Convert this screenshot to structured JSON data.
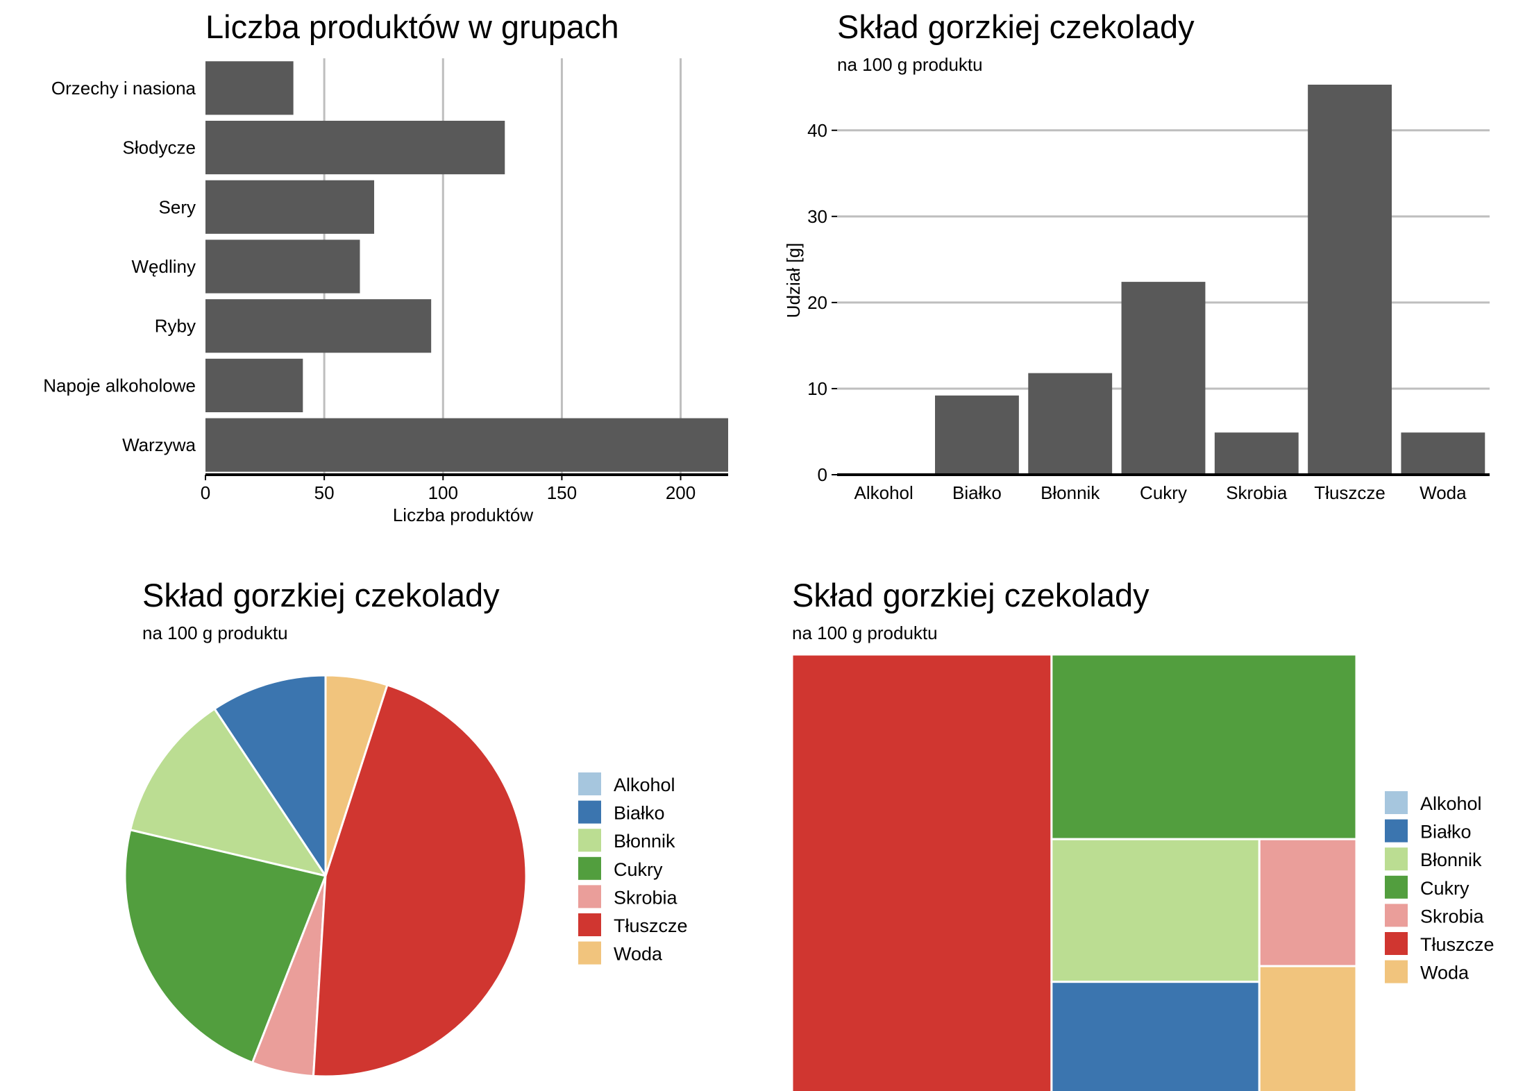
{
  "colors": {
    "bar": "#595959",
    "grid": "#BEBEBE",
    "axis": "#000000",
    "Alkohol": "#A6C6DE",
    "Białko": "#3B75AF",
    "Błonnik": "#BBDD92",
    "Cukry": "#529E3E",
    "Skrobia": "#EA9E9A",
    "Tłuszcze": "#D03630",
    "Woda": "#F1C47D"
  },
  "chart_data": [
    {
      "type": "bar",
      "orientation": "horizontal",
      "title": "Liczba produktów w grupach",
      "subtitle": "",
      "xlabel": "Liczba produktów",
      "ylabel": "",
      "categories": [
        "Orzechy i nasiona",
        "Słodycze",
        "Sery",
        "Wędliny",
        "Ryby",
        "Napoje alkoholowe",
        "Warzywa"
      ],
      "values": [
        37,
        126,
        71,
        65,
        95,
        41,
        220
      ],
      "xlim": [
        0,
        220
      ],
      "xticks": [
        "0",
        "50",
        "100",
        "150",
        "200"
      ],
      "xtick_values": [
        0,
        50,
        100,
        150,
        200
      ],
      "grid": "vertical"
    },
    {
      "type": "bar",
      "orientation": "vertical",
      "title": "Skład gorzkiej czekolady",
      "subtitle": "na 100 g produktu",
      "xlabel": "",
      "ylabel": "Udział [g]",
      "categories": [
        "Alkohol",
        "Białko",
        "Błonnik",
        "Cukry",
        "Skrobia",
        "Tłuszcze",
        "Woda"
      ],
      "values": [
        0,
        9.2,
        11.8,
        22.4,
        4.9,
        45.3,
        4.9
      ],
      "ylim": [
        0,
        45.3
      ],
      "yticks": [
        "0",
        "10",
        "20",
        "30",
        "40"
      ],
      "ytick_values": [
        0,
        10,
        20,
        30,
        40
      ],
      "grid": "horizontal"
    },
    {
      "type": "pie",
      "title": "Skład gorzkiej czekolady",
      "subtitle": "na 100 g produktu",
      "categories": [
        "Alkohol",
        "Białko",
        "Błonnik",
        "Cukry",
        "Skrobia",
        "Tłuszcze",
        "Woda"
      ],
      "values": [
        0,
        9.2,
        11.8,
        22.4,
        4.9,
        45.3,
        4.9
      ],
      "legend": [
        "Alkohol",
        "Białko",
        "Błonnik",
        "Cukry",
        "Skrobia",
        "Tłuszcze",
        "Woda"
      ],
      "legend_position": "right"
    },
    {
      "type": "treemap",
      "title": "Skład gorzkiej czekolady",
      "subtitle": "na 100 g produktu",
      "categories": [
        "Alkohol",
        "Białko",
        "Błonnik",
        "Cukry",
        "Skrobia",
        "Tłuszcze",
        "Woda"
      ],
      "values": [
        0,
        9.2,
        11.8,
        22.4,
        4.9,
        45.3,
        4.9
      ],
      "legend": [
        "Alkohol",
        "Białko",
        "Błonnik",
        "Cukry",
        "Skrobia",
        "Tłuszcze",
        "Woda"
      ],
      "legend_position": "right"
    }
  ]
}
